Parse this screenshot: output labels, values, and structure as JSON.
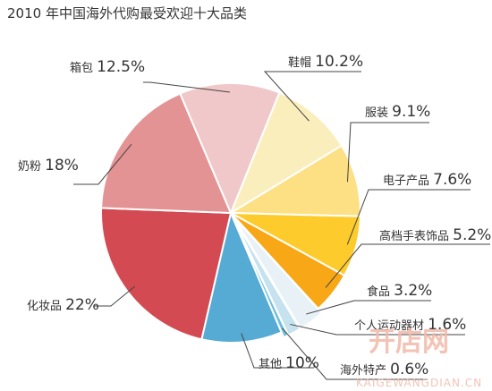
{
  "chart_data": {
    "type": "pie",
    "title": "2010 年中国海外代购最受欢迎十大品类",
    "slices": [
      {
        "label": "鞋帽",
        "display": "10.2%",
        "value": 10.2,
        "color": "#fbeebd"
      },
      {
        "label": "服装",
        "display": "9.1%",
        "value": 9.1,
        "color": "#fde084"
      },
      {
        "label": "电子产品",
        "display": "7.6%",
        "value": 7.6,
        "color": "#fdcc2c"
      },
      {
        "label": "高档手表饰品",
        "display": "5.2%",
        "value": 5.2,
        "color": "#f8a716"
      },
      {
        "label": "食品",
        "display": "3.2%",
        "value": 3.2,
        "color": "#e7f1f6"
      },
      {
        "label": "个人运动器材",
        "display": "1.6%",
        "value": 1.6,
        "color": "#c6e2ee"
      },
      {
        "label": "海外特产",
        "display": "0.6%",
        "value": 0.6,
        "color": "#6bbedd"
      },
      {
        "label": "其他",
        "display": "10%",
        "value": 10,
        "color": "#55abd3"
      },
      {
        "label": "化妆品",
        "display": "22%",
        "value": 22,
        "color": "#d34a53"
      },
      {
        "label": "奶粉",
        "display": "18%",
        "value": 18,
        "color": "#e49394"
      },
      {
        "label": "箱包",
        "display": "12.5%",
        "value": 12.5,
        "color": "#f0c8c9"
      }
    ]
  },
  "watermark": {
    "logo": "开店网",
    "url": "KAIGEWANGDIAN.CN"
  }
}
